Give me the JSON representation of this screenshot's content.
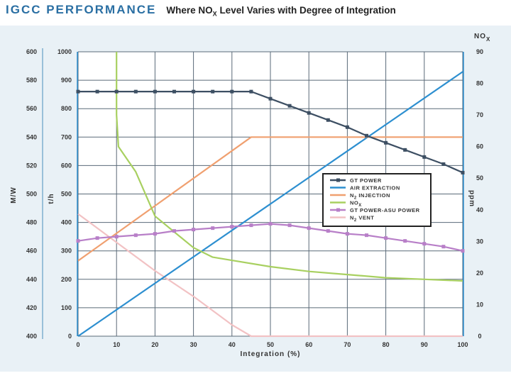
{
  "header": {
    "brand": "IGCC PERFORMANCE",
    "subtitle_pre": "Where NO",
    "subtitle_sub": "X",
    "subtitle_post": " Level Varies with Degree of Integration"
  },
  "chart_data": {
    "type": "line",
    "title": "Where NOX Level Varies with Degree of Integration",
    "xlabel": "Integration (%)",
    "xlim": [
      0,
      100
    ],
    "x_ticks": [
      "0",
      "10",
      "20",
      "30",
      "40",
      "50",
      "60",
      "70",
      "80",
      "90",
      "100"
    ],
    "axes": {
      "mw": {
        "label": "M/W",
        "ylim": [
          400,
          600
        ],
        "ticks": [
          "400",
          "420",
          "440",
          "460",
          "480",
          "500",
          "520",
          "540",
          "560",
          "580",
          "600"
        ]
      },
      "th": {
        "label": "t/h",
        "ylim": [
          0,
          1000
        ],
        "ticks": [
          "0",
          "100",
          "200",
          "300",
          "400",
          "500",
          "600",
          "700",
          "800",
          "900",
          "1000"
        ]
      },
      "ppm": {
        "label": "ppm",
        "title_pre": "NO",
        "title_sub": "X",
        "ylim": [
          0,
          90
        ],
        "ticks": [
          "0",
          "10",
          "20",
          "30",
          "40",
          "50",
          "60",
          "70",
          "80",
          "90"
        ]
      }
    },
    "series": [
      {
        "name": "GT POWER",
        "axis": "mw",
        "color": "#3d4f63",
        "marker": true,
        "x": [
          0,
          5,
          10,
          15,
          20,
          25,
          30,
          35,
          40,
          45,
          50,
          55,
          60,
          65,
          70,
          75,
          80,
          85,
          90,
          95,
          100
        ],
        "values": [
          572,
          572,
          572,
          572,
          572,
          572,
          572,
          572,
          572,
          572,
          567,
          562,
          557,
          552,
          547,
          541,
          536,
          531,
          526,
          521,
          515
        ]
      },
      {
        "name": "AIR EXTRACTION",
        "axis": "th",
        "color": "#2d8fd0",
        "marker": false,
        "x": [
          0,
          100
        ],
        "values": [
          0,
          930
        ]
      },
      {
        "name": "N2 INJECTION",
        "axis": "th",
        "color": "#f0a070",
        "marker": false,
        "x": [
          0,
          45,
          100
        ],
        "values": [
          265,
          700,
          700
        ]
      },
      {
        "name": "NOX",
        "axis": "ppm",
        "color": "#a8d060",
        "marker": false,
        "x": [
          10,
          10,
          10.5,
          15,
          20,
          25,
          30,
          35,
          40,
          50,
          60,
          70,
          80,
          90,
          100
        ],
        "values": [
          90,
          70,
          60,
          52,
          38,
          33,
          28,
          25,
          24,
          22,
          20.5,
          19.5,
          18.5,
          18,
          17.5
        ]
      },
      {
        "name": "GT POWER-ASU POWER",
        "axis": "mw",
        "color": "#b87fc8",
        "marker": true,
        "x": [
          0,
          5,
          10,
          15,
          20,
          25,
          30,
          35,
          40,
          45,
          50,
          55,
          60,
          65,
          70,
          75,
          80,
          85,
          90,
          95,
          100
        ],
        "values": [
          467,
          469,
          470,
          471,
          472,
          474,
          475,
          476,
          477,
          478,
          479,
          478,
          476,
          474,
          472,
          471,
          469,
          467,
          465,
          463,
          460
        ]
      },
      {
        "name": "N2 VENT",
        "axis": "th",
        "color": "#f2c2c4",
        "marker": false,
        "x": [
          0,
          10,
          20,
          30,
          40,
          45,
          100
        ],
        "values": [
          430,
          330,
          230,
          140,
          40,
          0,
          0
        ]
      }
    ],
    "legend": {
      "position": "center-right",
      "entries": [
        {
          "pre": "GT POWER",
          "sub": "",
          "post": ""
        },
        {
          "pre": "AIR EXTRACTION",
          "sub": "",
          "post": ""
        },
        {
          "pre": "N",
          "sub": "2",
          "post": " INJECTION"
        },
        {
          "pre": "NO",
          "sub": "X",
          "post": ""
        },
        {
          "pre": "GT POWER-ASU POWER",
          "sub": "",
          "post": ""
        },
        {
          "pre": "N",
          "sub": "2",
          "post": " VENT"
        }
      ]
    }
  }
}
